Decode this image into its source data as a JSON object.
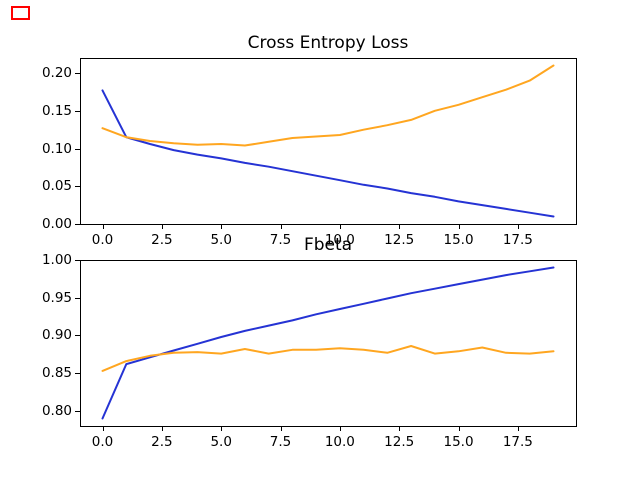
{
  "figure": {
    "background": "#ffffff"
  },
  "marker": {
    "shape": "rectangle-outline",
    "color": "#ff0000"
  },
  "chart_data": [
    {
      "type": "line",
      "title": "Cross Entropy Loss",
      "x": [
        0,
        1,
        2,
        3,
        4,
        5,
        6,
        7,
        8,
        9,
        10,
        11,
        12,
        13,
        14,
        15,
        16,
        17,
        18,
        19
      ],
      "series": [
        {
          "name": "blue",
          "color": "#2533d4",
          "values": [
            0.177,
            0.115,
            0.106,
            0.098,
            0.092,
            0.087,
            0.081,
            0.076,
            0.07,
            0.064,
            0.058,
            0.052,
            0.047,
            0.041,
            0.036,
            0.03,
            0.025,
            0.02,
            0.015,
            0.01
          ]
        },
        {
          "name": "orange",
          "color": "#ffa620",
          "values": [
            0.127,
            0.115,
            0.11,
            0.107,
            0.105,
            0.106,
            0.104,
            0.109,
            0.114,
            0.116,
            0.118,
            0.125,
            0.131,
            0.138,
            0.15,
            0.158,
            0.168,
            0.178,
            0.19,
            0.21
          ]
        }
      ],
      "xlim": [
        -0.95,
        19.95
      ],
      "ylim": [
        0.0,
        0.22
      ],
      "xtick_values": [
        0,
        2.5,
        5,
        7.5,
        10,
        12.5,
        15,
        17.5
      ],
      "xtick_labels": [
        "0.0",
        "2.5",
        "5.0",
        "7.5",
        "10.0",
        "12.5",
        "15.0",
        "17.5"
      ],
      "ytick_values": [
        0.0,
        0.05,
        0.1,
        0.15,
        0.2
      ],
      "ytick_labels": [
        "0.00",
        "0.05",
        "0.10",
        "0.15",
        "0.20"
      ],
      "grid": false,
      "legend": "none"
    },
    {
      "type": "line",
      "title": "Fbeta",
      "x": [
        0,
        1,
        2,
        3,
        4,
        5,
        6,
        7,
        8,
        9,
        10,
        11,
        12,
        13,
        14,
        15,
        16,
        17,
        18,
        19
      ],
      "series": [
        {
          "name": "blue",
          "color": "#2533d4",
          "values": [
            0.79,
            0.862,
            0.871,
            0.88,
            0.889,
            0.898,
            0.906,
            0.913,
            0.92,
            0.928,
            0.935,
            0.942,
            0.949,
            0.956,
            0.962,
            0.968,
            0.974,
            0.98,
            0.985,
            0.99
          ]
        },
        {
          "name": "orange",
          "color": "#ffa620",
          "values": [
            0.853,
            0.866,
            0.873,
            0.877,
            0.878,
            0.876,
            0.882,
            0.876,
            0.881,
            0.881,
            0.883,
            0.881,
            0.877,
            0.886,
            0.876,
            0.879,
            0.884,
            0.877,
            0.876,
            0.879
          ]
        }
      ],
      "xlim": [
        -0.95,
        19.95
      ],
      "ylim": [
        0.78,
        1.0
      ],
      "xtick_values": [
        0,
        2.5,
        5,
        7.5,
        10,
        12.5,
        15,
        17.5
      ],
      "xtick_labels": [
        "0.0",
        "2.5",
        "5.0",
        "7.5",
        "10.0",
        "12.5",
        "15.0",
        "17.5"
      ],
      "ytick_values": [
        0.8,
        0.85,
        0.9,
        0.95,
        1.0
      ],
      "ytick_labels": [
        "0.80",
        "0.85",
        "0.90",
        "0.95",
        "1.00"
      ],
      "grid": false,
      "legend": "none"
    }
  ]
}
